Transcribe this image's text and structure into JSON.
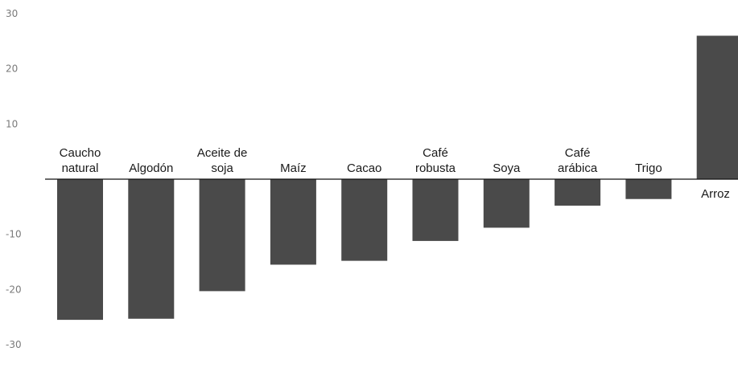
{
  "chart_data": {
    "type": "bar",
    "title": "",
    "xlabel": "",
    "ylabel": "",
    "ylim": [
      -30,
      30
    ],
    "yticks": [
      30,
      20,
      10,
      -10,
      -20,
      -30
    ],
    "grid": false,
    "legend": "none",
    "bar_color": "#4a4a4a",
    "categories": [
      [
        "Caucho",
        "natural"
      ],
      [
        "Algodón"
      ],
      [
        "Aceite de",
        "soja"
      ],
      [
        "Maíz"
      ],
      [
        "Cacao"
      ],
      [
        "Café",
        "robusta"
      ],
      [
        "Soya"
      ],
      [
        "Café",
        "arábica"
      ],
      [
        "Trigo"
      ],
      [
        "Arroz"
      ]
    ],
    "values": [
      -25.5,
      -25.3,
      -20.3,
      -15.5,
      -14.8,
      -11.2,
      -8.8,
      -4.8,
      -3.6,
      26.0
    ]
  }
}
